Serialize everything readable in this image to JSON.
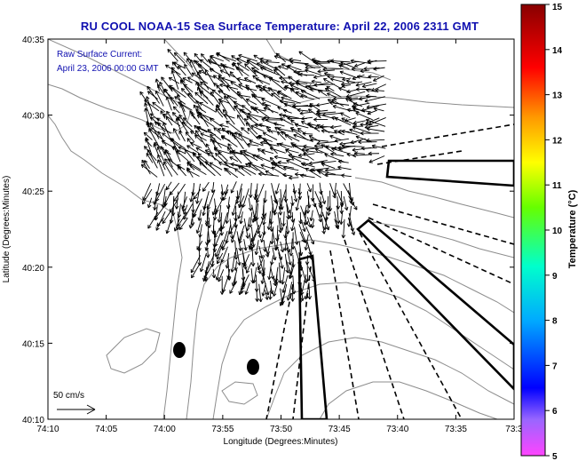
{
  "title": "RU COOL  NOAA-15  Sea Surface Temperature:  April 22, 2006 2311 GMT",
  "overlay": {
    "line1": "Raw Surface Current:",
    "line2": "April 23, 2006 00:00 GMT"
  },
  "scale_label": "50 cm/s",
  "x_axis": {
    "label": "Longitude (Degrees:Minutes)",
    "ticks": [
      "74:10",
      "74:05",
      "74:00",
      "73:55",
      "73:50",
      "73:45",
      "73:40",
      "73:35",
      "73:3"
    ]
  },
  "y_axis": {
    "label": "Latitude (Degrees:Minutes)",
    "ticks": [
      "40:35",
      "40:30",
      "40:25",
      "40:20",
      "40:15",
      "40:10"
    ]
  },
  "colorbar": {
    "label": "Temperature (°C)",
    "ticks": [
      "15",
      "14",
      "13",
      "12",
      "11",
      "10",
      "9",
      "8",
      "7",
      "6",
      "5"
    ],
    "min": 5,
    "max": 15,
    "colors": [
      "#ff33ff",
      "#0000ff",
      "#00ccff",
      "#00ff99",
      "#ccff00",
      "#ffcc00",
      "#ff6600",
      "#cc0000",
      "#990000"
    ]
  },
  "map": {
    "ocean_color": "#ffffff",
    "coast_color": "#888888",
    "vector_color": "#000000"
  }
}
